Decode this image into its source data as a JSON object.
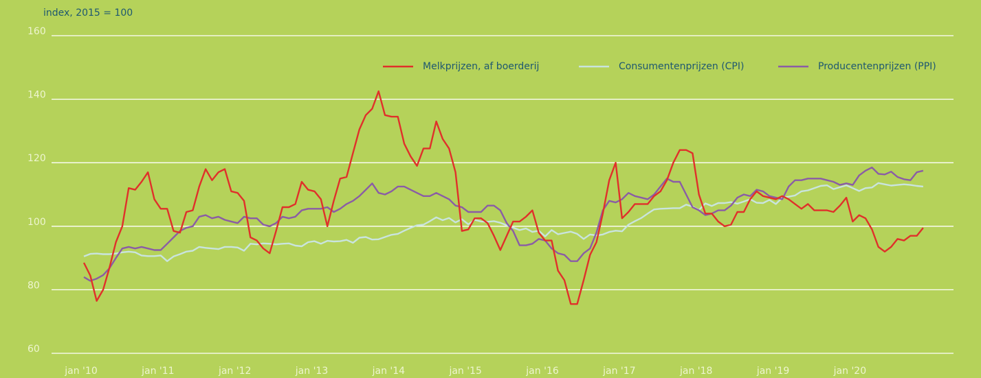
{
  "chart_data": {
    "type": "line",
    "ylabel": "index, 2015 = 100",
    "categories": [
      "jan '10",
      null,
      null,
      null,
      null,
      null,
      null,
      null,
      null,
      null,
      null,
      null,
      "jan '11",
      null,
      null,
      null,
      null,
      null,
      null,
      null,
      null,
      null,
      null,
      null,
      "jan '12",
      null,
      null,
      null,
      null,
      null,
      null,
      null,
      null,
      null,
      null,
      null,
      "jan '13",
      null,
      null,
      null,
      null,
      null,
      null,
      null,
      null,
      null,
      null,
      null,
      "jan '14",
      null,
      null,
      null,
      null,
      null,
      null,
      null,
      null,
      null,
      null,
      null,
      "jan '15",
      null,
      null,
      null,
      null,
      null,
      null,
      null,
      null,
      null,
      null,
      null,
      "jan '16",
      null,
      null,
      null,
      null,
      null,
      null,
      null,
      null,
      null,
      null,
      null,
      "jan '17",
      null,
      null,
      null,
      null,
      null,
      null,
      null,
      null,
      null,
      null,
      null,
      "jan '18",
      null,
      null,
      null,
      null,
      null,
      null,
      null,
      null,
      null,
      null,
      null,
      "jan '19",
      null,
      null,
      null,
      null,
      null,
      null,
      null,
      null,
      null,
      null,
      null,
      "jan '20",
      null,
      null,
      null,
      null,
      null,
      null,
      null,
      null,
      null,
      null,
      null
    ],
    "series": [
      {
        "name": "Melkprijzen, af boerderij",
        "color": "#e0302a",
        "values": [
          88.5,
          84.5,
          76.5,
          80,
          87,
          95,
          100,
          112,
          111.5,
          114,
          117,
          108.5,
          105.5,
          105.5,
          98.5,
          98,
          104.5,
          105,
          112.5,
          118,
          114.5,
          117,
          118,
          111,
          110.5,
          108,
          96.5,
          95.5,
          93,
          91.5,
          98.5,
          106,
          106,
          107,
          114,
          111.5,
          111,
          108.5,
          100,
          108,
          115,
          115.5,
          123,
          130.5,
          135,
          137,
          142.5,
          135,
          134.5,
          134.5,
          126,
          122,
          119,
          124.5,
          124.5,
          133,
          127.5,
          124.5,
          117,
          98.5,
          99,
          102.5,
          102.5,
          101,
          97,
          92.5,
          97,
          101.5,
          101.5,
          103,
          105,
          98,
          95.5,
          95.5,
          86,
          83,
          75.5,
          75.5,
          83,
          91,
          95,
          104,
          114.5,
          120,
          102.5,
          104.5,
          107,
          107,
          107,
          109.5,
          111,
          114.5,
          120,
          124,
          124,
          123,
          110,
          104,
          104,
          101.5,
          100,
          100.5,
          104.5,
          104.5,
          108.5,
          111,
          109.5,
          109,
          108.5,
          109.5,
          108.5,
          107,
          105.5,
          107,
          105,
          105,
          105,
          104.5,
          106.5,
          109,
          101.5,
          103.5,
          102.5,
          99,
          93.5,
          92,
          93.5,
          96,
          95.5,
          97,
          97,
          99.5
        ]
      },
      {
        "name": "Consumentenprijzen (CPI)",
        "color": "#c9e4de",
        "values": [
          90.5,
          91.3,
          91.4,
          91.2,
          91.2,
          91.4,
          91.8,
          92.0,
          91.8,
          90.8,
          90.6,
          90.6,
          90.8,
          89.0,
          90.5,
          91.2,
          92.0,
          92.3,
          93.5,
          93.2,
          93.0,
          92.8,
          93.5,
          93.5,
          93.3,
          92.3,
          94.5,
          94.3,
          94.6,
          94.5,
          94.3,
          94.5,
          94.6,
          93.9,
          93.7,
          95.0,
          95.3,
          94.5,
          95.4,
          95.2,
          95.3,
          95.7,
          94.8,
          96.4,
          96.6,
          95.8,
          95.9,
          96.6,
          97.3,
          97.6,
          98.6,
          99.5,
          100.3,
          100.5,
          101.6,
          102.8,
          101.9,
          102.6,
          101.2,
          102.2,
          100.6,
          102.0,
          101.5,
          101.4,
          101.6,
          101.1,
          100.3,
          99.6,
          98.8,
          99.3,
          98.2,
          98.6,
          96.8,
          98.8,
          97.5,
          97.9,
          98.3,
          97.6,
          96.0,
          97.4,
          97.1,
          97.4,
          98.2,
          98.6,
          98.4,
          100.5,
          101.6,
          102.6,
          104.0,
          105.3,
          105.5,
          105.6,
          105.7,
          105.7,
          106.8,
          106.2,
          105.1,
          107.2,
          106.4,
          107.3,
          107.3,
          107.6,
          107.1,
          107.8,
          108.5,
          107.4,
          107.3,
          108.3,
          107.0,
          109.0,
          109.3,
          109.7,
          111.0,
          111.3,
          112.0,
          112.7,
          112.9,
          111.7,
          112.3,
          112.9,
          112.0,
          111.1,
          112.0,
          112.2,
          113.6,
          113.2,
          112.8,
          113.0,
          113.2,
          113.0,
          112.7,
          112.5
        ]
      },
      {
        "name": "Producentenprijzen (PPI)",
        "color": "#8a5ca6",
        "values": [
          84,
          82.8,
          83.5,
          84.6,
          86.8,
          90,
          93,
          93.5,
          93,
          93.5,
          93,
          92.5,
          92.5,
          94.5,
          96.5,
          98.5,
          99.5,
          100,
          103,
          103.5,
          102.5,
          103,
          102,
          101.5,
          101,
          103,
          102.5,
          102.5,
          100.5,
          100,
          101,
          103,
          102.5,
          103,
          105,
          105.5,
          105.5,
          105.5,
          106,
          104.5,
          105.5,
          107,
          108,
          109.5,
          111.5,
          113.5,
          110.5,
          110,
          111,
          112.5,
          112.5,
          111.5,
          110.5,
          109.5,
          109.5,
          110.5,
          109.5,
          108.5,
          106.5,
          106,
          104.5,
          104.5,
          104.5,
          106.5,
          106.5,
          105,
          101,
          98.5,
          94,
          94,
          94.5,
          96,
          95.5,
          93,
          91.5,
          91,
          89,
          89,
          91.5,
          93,
          98,
          105,
          108,
          107.5,
          108.5,
          110.5,
          109.5,
          109,
          108.5,
          110,
          112.5,
          115,
          114,
          114,
          110,
          106,
          105,
          103.5,
          104,
          105,
          105,
          106.5,
          109,
          110,
          109.5,
          111.5,
          111,
          109.5,
          109,
          108.5,
          112.5,
          114.5,
          114.5,
          115,
          115,
          115,
          114.5,
          114,
          113,
          113.5,
          113,
          116,
          117.5,
          118.5,
          116.5,
          116.3,
          117.2,
          115.5,
          114.8,
          114.5,
          117,
          117.5
        ]
      }
    ],
    "ylim": [
      60,
      160
    ],
    "yticks": [
      60,
      80,
      100,
      120,
      140,
      160
    ],
    "grid": true,
    "legend": "top-right"
  }
}
